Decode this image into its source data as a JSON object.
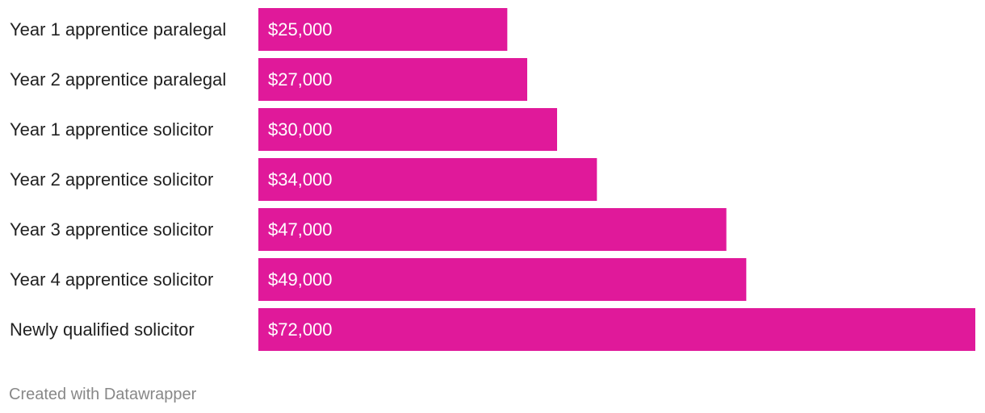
{
  "chart_data": {
    "type": "bar",
    "orientation": "horizontal",
    "categories": [
      "Year 1 apprentice paralegal",
      "Year 2 apprentice paralegal",
      "Year 1 apprentice solicitor",
      "Year 2 apprentice solicitor",
      "Year 3 apprentice solicitor",
      "Year 4 apprentice solicitor",
      "Newly qualified solicitor"
    ],
    "values": [
      25000,
      27000,
      30000,
      34000,
      47000,
      49000,
      72000
    ],
    "value_labels": [
      "$25,000",
      "$27,000",
      "$30,000",
      "$34,000",
      "$47,000",
      "$49,000",
      "$72,000"
    ],
    "color": "#e0199a"
  },
  "credit": "Created with Datawrapper"
}
